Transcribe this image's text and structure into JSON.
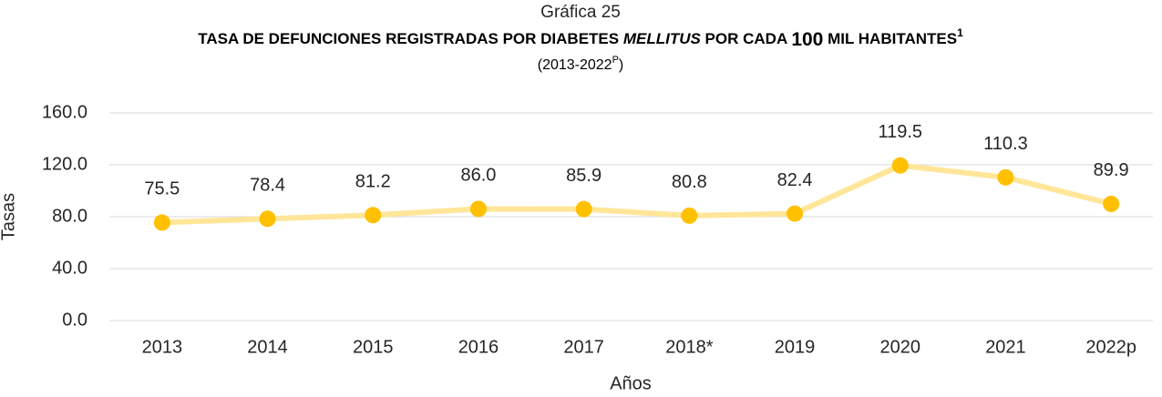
{
  "chart_data": {
    "type": "line",
    "title": "Gráfica 25",
    "subtitle_parts": [
      "TASA DE DEFUNCIONES REGISTRADAS POR DIABETES ",
      "MELLITUS",
      " POR CADA ",
      "100",
      " MIL HABITANTES",
      "1"
    ],
    "period_parts": [
      "(2013-2022",
      "P",
      ")"
    ],
    "x_label": "Años",
    "y_label": "Tasas",
    "categories": [
      "2013",
      "2014",
      "2015",
      "2016",
      "2017",
      "2018*",
      "2019",
      "2020",
      "2021",
      "2022p"
    ],
    "series": [
      {
        "name": "Tasas",
        "line_color": "#ffe699",
        "color": "#ffc000",
        "values": [
          75.5,
          78.4,
          81.2,
          86.0,
          85.9,
          80.8,
          82.4,
          119.5,
          110.3,
          89.9
        ],
        "value_labels": [
          "75.5",
          "78.4",
          "81.2",
          "86.0",
          "85.9",
          "80.8",
          "82.4",
          "119.5",
          "110.3",
          "89.9"
        ]
      }
    ],
    "ylim": [
      0,
      160
    ],
    "yticks": [
      {
        "value": 0,
        "label": "0.0"
      },
      {
        "value": 40,
        "label": "40.0"
      },
      {
        "value": 80,
        "label": "80.0"
      },
      {
        "value": 120,
        "label": "120.0"
      },
      {
        "value": 160,
        "label": "160.0"
      }
    ],
    "grid": true
  }
}
